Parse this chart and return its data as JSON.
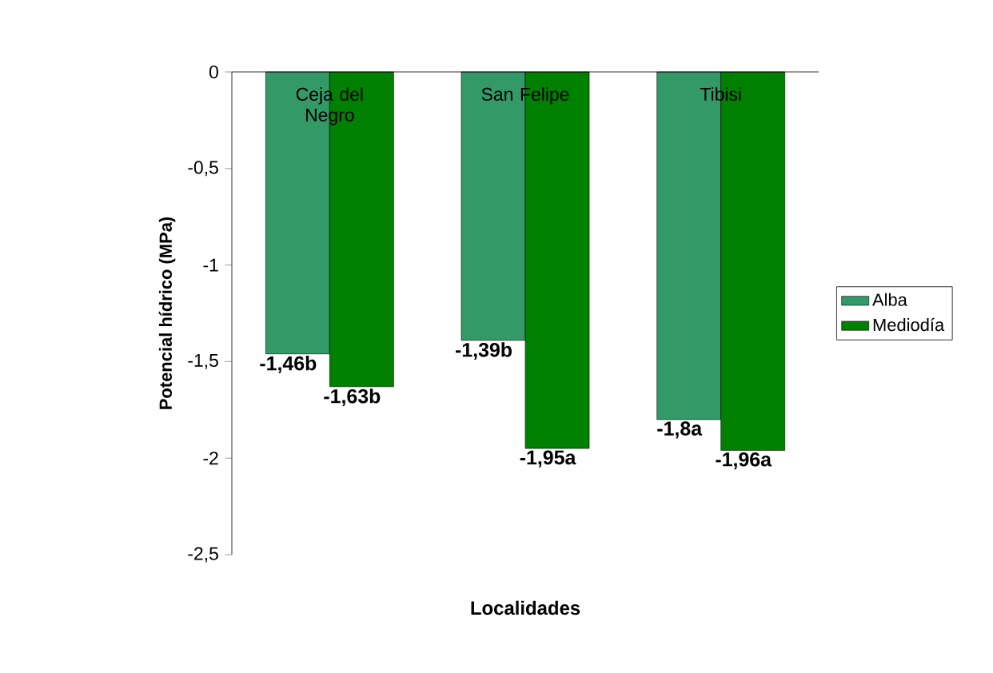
{
  "chart_data": {
    "type": "bar",
    "xlabel": "Localidades",
    "ylabel": "Potencial hídrico (MPa)",
    "categories": [
      "Ceja del Negro",
      "San Felipe",
      "Tibisi"
    ],
    "series": [
      {
        "name": "Alba",
        "color": "#339966",
        "values": [
          -1.46,
          -1.39,
          -1.8
        ],
        "value_labels": [
          "-1,46b",
          "-1,39b",
          "-1,8a"
        ]
      },
      {
        "name": "Mediodía",
        "color": "#008000",
        "values": [
          -1.63,
          -1.95,
          -1.96
        ],
        "value_labels": [
          "-1,63b",
          "-1,95a",
          "-1,96a"
        ]
      }
    ],
    "ylim": [
      -2.5,
      0
    ],
    "yticks": [
      {
        "value": 0,
        "label": "0"
      },
      {
        "value": -0.5,
        "label": "-0,5"
      },
      {
        "value": -1,
        "label": "-1"
      },
      {
        "value": -1.5,
        "label": "-1,5"
      },
      {
        "value": -2,
        "label": "-2"
      },
      {
        "value": -2.5,
        "label": "-2,5"
      }
    ],
    "grid": false,
    "legend": "right"
  }
}
